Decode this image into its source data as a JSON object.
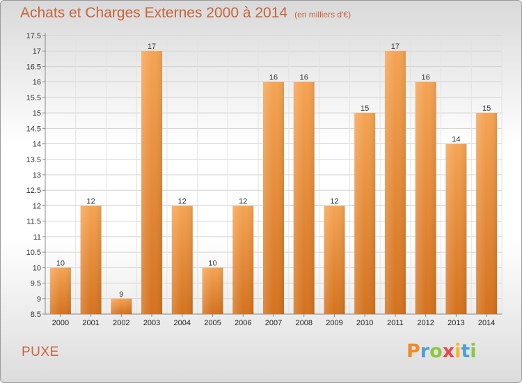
{
  "title": {
    "main": "Achats et Charges Externes 2000 à 2014",
    "unit": "(en milliers d'€)"
  },
  "place": "PUXE",
  "logo": {
    "letters": [
      {
        "ch": "P",
        "color": "#f28a26"
      },
      {
        "ch": "r",
        "color": "#4e9fd6"
      },
      {
        "ch": "o",
        "color": "#8cc63f"
      },
      {
        "ch": "x",
        "color": "#e8474c"
      },
      {
        "ch": "i",
        "color": "#f4b820"
      },
      {
        "ch": "t",
        "color": "#4e9fd6"
      },
      {
        "ch": "i",
        "color": "#8cc63f"
      }
    ]
  },
  "chart_data": {
    "type": "bar",
    "categories": [
      "2000",
      "2001",
      "2002",
      "2003",
      "2004",
      "2005",
      "2006",
      "2007",
      "2008",
      "2009",
      "2010",
      "2011",
      "2012",
      "2013",
      "2014"
    ],
    "values": [
      10,
      12,
      9,
      17,
      12,
      10,
      12,
      16,
      16,
      12,
      15,
      17,
      16,
      14,
      15
    ],
    "value_labels": [
      "10",
      "12",
      "9",
      "17",
      "12",
      "10",
      "12",
      "16",
      "16",
      "12",
      "15",
      "17",
      "16",
      "14",
      "15"
    ],
    "title": "Achats et Charges Externes 2000 à 2014",
    "ylim": [
      8.5,
      17.5
    ],
    "yticks": [
      "8.5",
      "9",
      "9.5",
      "10",
      "10.5",
      "11",
      "11.5",
      "12",
      "12.5",
      "13",
      "13.5",
      "14",
      "14.5",
      "15",
      "15.5",
      "16",
      "16.5",
      "17",
      "17.5"
    ],
    "grid": true,
    "bar_color_top": "#f5a453",
    "bar_color_bottom": "#d4721e"
  }
}
